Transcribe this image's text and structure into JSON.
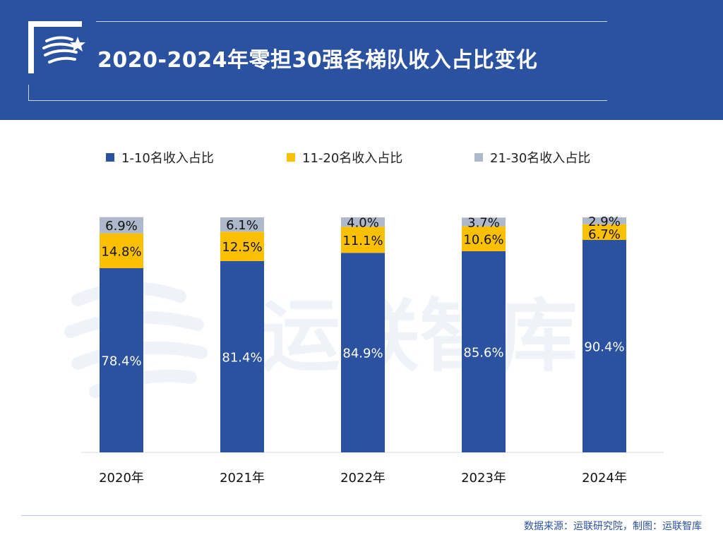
{
  "header": {
    "title": "2020-2024年零担30强各梯队收入占比变化"
  },
  "legend": [
    {
      "label": "1-10名收入占比",
      "color": "#2b51a1"
    },
    {
      "label": "11-20名收入占比",
      "color": "#fcc003"
    },
    {
      "label": "21-30名收入占比",
      "color": "#adb9ca"
    }
  ],
  "watermark": {
    "text": "运联智库"
  },
  "chart_data": {
    "type": "bar",
    "stacked": true,
    "categories": [
      "2020年",
      "2021年",
      "2022年",
      "2023年",
      "2024年"
    ],
    "series": [
      {
        "name": "1-10名收入占比",
        "values": [
          78.4,
          81.4,
          84.9,
          85.6,
          90.4
        ],
        "labels": [
          "78.4%",
          "81.4%",
          "84.9%",
          "85.6%",
          "90.4%"
        ],
        "color": "#2b51a1",
        "label_color": "#ffffff"
      },
      {
        "name": "11-20名收入占比",
        "values": [
          14.8,
          12.5,
          11.1,
          10.6,
          6.7
        ],
        "labels": [
          "14.8%",
          "12.5%",
          "11.1%",
          "10.6%",
          "6.7%"
        ],
        "color": "#fcc003",
        "label_color": "#111111"
      },
      {
        "name": "21-30名收入占比",
        "values": [
          6.9,
          6.1,
          4.0,
          3.7,
          2.9
        ],
        "labels": [
          "6.9%",
          "6.1%",
          "4.0%",
          "3.7%",
          "2.9%"
        ],
        "color": "#adb9ca",
        "label_color": "#111111"
      }
    ],
    "ylim": [
      0,
      100
    ],
    "grid": false,
    "legend_position": "top"
  },
  "footer": {
    "source": "数据来源：运联研究院，制图：运联智库"
  }
}
